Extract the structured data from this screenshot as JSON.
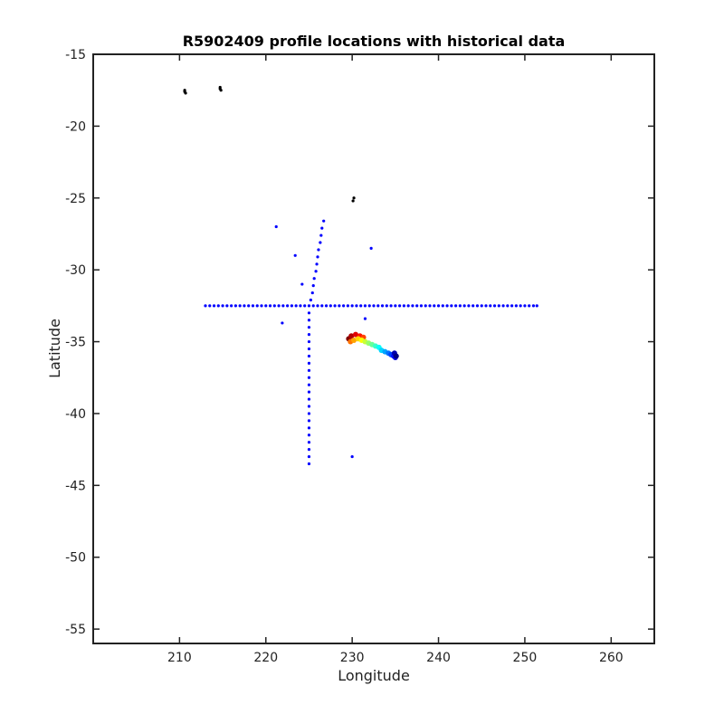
{
  "chart_data": {
    "type": "scatter",
    "title": "R5902409 profile locations with historical data",
    "xlabel": "Longitude",
    "ylabel": "Latitude",
    "xlim": [
      200,
      265
    ],
    "ylim": [
      -56,
      -15
    ],
    "xticks": [
      210,
      220,
      230,
      240,
      250,
      260
    ],
    "yticks": [
      -15,
      -20,
      -25,
      -30,
      -35,
      -40,
      -45,
      -50,
      -55
    ],
    "grid": false,
    "legend": "none",
    "colors": {
      "historical": "#0000ff",
      "other": "#000000",
      "profile_start": "#0000ff",
      "profile_end": "#ff0000"
    },
    "series": [
      {
        "points": [
          [
            210.6,
            -17.5
          ],
          [
            210.7,
            -17.7
          ],
          [
            210.6,
            -17.6
          ],
          [
            214.7,
            -17.3
          ],
          [
            214.8,
            -17.5
          ],
          [
            214.7,
            -17.4
          ],
          [
            230.2,
            -25.0
          ],
          [
            230.1,
            -25.2
          ]
        ],
        "color": "#000000"
      },
      {
        "points": [
          [
            226.7,
            -26.6
          ],
          [
            226.5,
            -27.1
          ],
          [
            226.4,
            -27.6
          ],
          [
            226.3,
            -28.1
          ],
          [
            226.1,
            -28.6
          ],
          [
            226.0,
            -29.1
          ],
          [
            225.9,
            -29.6
          ],
          [
            225.8,
            -30.1
          ],
          [
            225.6,
            -30.6
          ],
          [
            225.5,
            -31.1
          ],
          [
            225.4,
            -31.6
          ],
          [
            225.2,
            -32.1
          ],
          [
            213.0,
            -32.5
          ],
          [
            213.5,
            -32.5
          ],
          [
            214.0,
            -32.5
          ],
          [
            214.5,
            -32.5
          ],
          [
            215.0,
            -32.5
          ],
          [
            215.5,
            -32.5
          ],
          [
            216.0,
            -32.5
          ],
          [
            216.5,
            -32.5
          ],
          [
            217.0,
            -32.5
          ],
          [
            217.5,
            -32.5
          ],
          [
            218.0,
            -32.5
          ],
          [
            218.5,
            -32.5
          ],
          [
            219.0,
            -32.5
          ],
          [
            219.5,
            -32.5
          ],
          [
            220.0,
            -32.5
          ],
          [
            220.5,
            -32.5
          ],
          [
            221.0,
            -32.5
          ],
          [
            221.5,
            -32.5
          ],
          [
            222.0,
            -32.5
          ],
          [
            222.5,
            -32.5
          ],
          [
            223.0,
            -32.5
          ],
          [
            223.5,
            -32.5
          ],
          [
            224.0,
            -32.5
          ],
          [
            224.5,
            -32.5
          ],
          [
            225.0,
            -32.5
          ],
          [
            225.5,
            -32.5
          ],
          [
            226.0,
            -32.5
          ],
          [
            226.5,
            -32.5
          ],
          [
            227.0,
            -32.5
          ],
          [
            227.5,
            -32.5
          ],
          [
            228.0,
            -32.5
          ],
          [
            228.5,
            -32.5
          ],
          [
            229.0,
            -32.5
          ],
          [
            229.5,
            -32.5
          ],
          [
            230.0,
            -32.5
          ],
          [
            230.5,
            -32.5
          ],
          [
            231.0,
            -32.5
          ],
          [
            231.5,
            -32.5
          ],
          [
            232.0,
            -32.5
          ],
          [
            232.5,
            -32.5
          ],
          [
            233.0,
            -32.5
          ],
          [
            233.5,
            -32.5
          ],
          [
            234.0,
            -32.5
          ],
          [
            234.5,
            -32.5
          ],
          [
            235.0,
            -32.5
          ],
          [
            235.5,
            -32.5
          ],
          [
            236.0,
            -32.5
          ],
          [
            236.5,
            -32.5
          ],
          [
            237.0,
            -32.5
          ],
          [
            237.5,
            -32.5
          ],
          [
            238.0,
            -32.5
          ],
          [
            238.5,
            -32.5
          ],
          [
            239.0,
            -32.5
          ],
          [
            239.5,
            -32.5
          ],
          [
            240.0,
            -32.5
          ],
          [
            240.5,
            -32.5
          ],
          [
            241.0,
            -32.5
          ],
          [
            241.5,
            -32.5
          ],
          [
            242.0,
            -32.5
          ],
          [
            242.5,
            -32.5
          ],
          [
            243.0,
            -32.5
          ],
          [
            243.5,
            -32.5
          ],
          [
            244.0,
            -32.5
          ],
          [
            244.5,
            -32.5
          ],
          [
            245.0,
            -32.5
          ],
          [
            245.5,
            -32.5
          ],
          [
            246.0,
            -32.5
          ],
          [
            246.5,
            -32.5
          ],
          [
            247.0,
            -32.5
          ],
          [
            247.5,
            -32.5
          ],
          [
            248.0,
            -32.5
          ],
          [
            248.5,
            -32.5
          ],
          [
            249.0,
            -32.5
          ],
          [
            249.5,
            -32.5
          ],
          [
            250.0,
            -32.5
          ],
          [
            250.5,
            -32.5
          ],
          [
            251.0,
            -32.5
          ],
          [
            251.4,
            -32.5
          ],
          [
            225.0,
            -33.0
          ],
          [
            225.0,
            -33.5
          ],
          [
            225.0,
            -34.0
          ],
          [
            225.0,
            -34.5
          ],
          [
            225.0,
            -35.0
          ],
          [
            225.0,
            -35.5
          ],
          [
            225.0,
            -36.0
          ],
          [
            225.0,
            -36.5
          ],
          [
            225.0,
            -37.0
          ],
          [
            225.0,
            -37.5
          ],
          [
            225.0,
            -38.0
          ],
          [
            225.0,
            -38.5
          ],
          [
            225.0,
            -39.0
          ],
          [
            225.0,
            -39.5
          ],
          [
            225.0,
            -40.0
          ],
          [
            225.0,
            -40.5
          ],
          [
            225.0,
            -41.0
          ],
          [
            225.0,
            -41.5
          ],
          [
            225.0,
            -42.0
          ],
          [
            225.0,
            -42.5
          ],
          [
            225.0,
            -43.0
          ],
          [
            225.0,
            -43.5
          ],
          [
            221.2,
            -27.0
          ],
          [
            223.4,
            -29.0
          ],
          [
            232.2,
            -28.5
          ],
          [
            224.2,
            -31.0
          ],
          [
            221.9,
            -33.7
          ],
          [
            231.5,
            -33.4
          ],
          [
            230.0,
            -43.0
          ]
        ],
        "color": "#0000ff"
      },
      {
        "points": [
          [
            229.6,
            -34.8
          ],
          [
            229.9,
            -34.6
          ],
          [
            230.4,
            -34.5
          ],
          [
            230.9,
            -34.6
          ],
          [
            231.3,
            -34.7
          ],
          [
            229.8,
            -35.0
          ],
          [
            230.2,
            -34.9
          ],
          [
            230.7,
            -34.8
          ],
          [
            231.1,
            -34.9
          ],
          [
            231.5,
            -35.0
          ],
          [
            231.9,
            -35.1
          ],
          [
            232.3,
            -35.2
          ],
          [
            232.7,
            -35.3
          ],
          [
            233.1,
            -35.4
          ],
          [
            233.4,
            -35.6
          ],
          [
            233.8,
            -35.7
          ],
          [
            234.2,
            -35.8
          ],
          [
            234.5,
            -35.9
          ],
          [
            234.8,
            -36.0
          ],
          [
            235.0,
            -36.1
          ],
          [
            234.9,
            -35.8
          ],
          [
            235.1,
            -36.0
          ]
        ],
        "color_gradient": "jet"
      }
    ]
  }
}
